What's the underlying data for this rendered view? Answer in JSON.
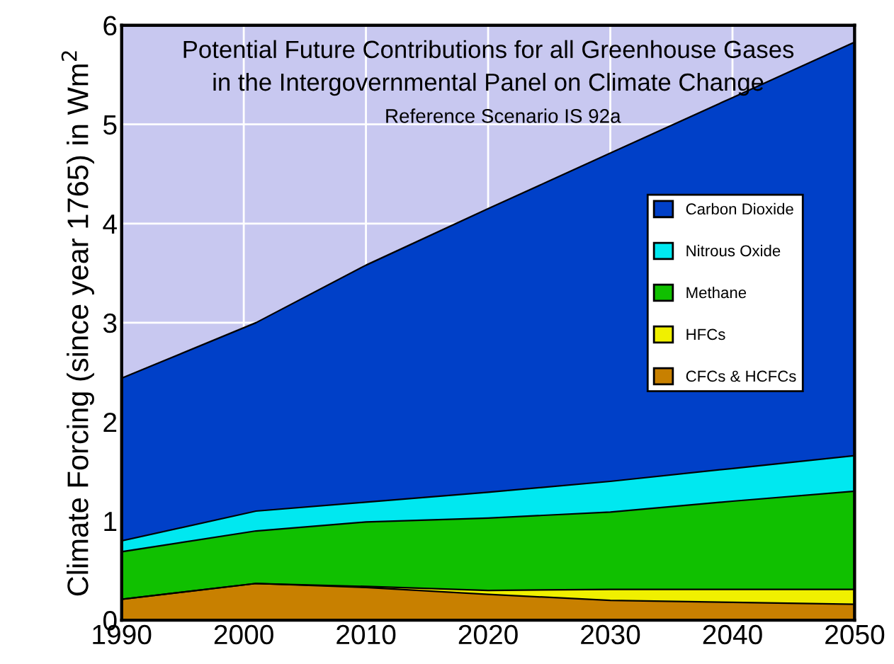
{
  "chart_data": {
    "type": "area",
    "stacked": true,
    "title": "Potential Future Contributions for all Greenhouse Gases",
    "subtitle": "in the Intergovernmental Panel on Climate Change",
    "annotations": [
      "Reference Scenario IS 92a"
    ],
    "ylabel": "Climate Forcing (since year 1765) in Wm$^{2}$",
    "x": [
      1990,
      2001,
      2010,
      2020,
      2030,
      2040,
      2050
    ],
    "series": [
      {
        "name": "CFCs & HCFCs",
        "color": "#c88000",
        "values": [
          0.21,
          0.37,
          0.33,
          0.26,
          0.2,
          0.18,
          0.16
        ]
      },
      {
        "name": "HFCs",
        "color": "#f0f000",
        "values": [
          0,
          0,
          0.01,
          0.04,
          0.11,
          0.13,
          0.15
        ]
      },
      {
        "name": "Methane",
        "color": "#10c000",
        "values": [
          0.48,
          0.53,
          0.65,
          0.73,
          0.78,
          0.89,
          0.99
        ]
      },
      {
        "name": "Nitrous Oxide",
        "color": "#00e8f0",
        "values": [
          0.11,
          0.2,
          0.2,
          0.26,
          0.31,
          0.33,
          0.36
        ]
      },
      {
        "name": "Carbon Dioxide",
        "color": "#0040c8",
        "values": [
          1.64,
          1.9,
          2.39,
          2.86,
          3.31,
          3.74,
          4.17
        ]
      }
    ],
    "xlim": [
      1990,
      2050
    ],
    "xticks": [
      1990,
      2000,
      2010,
      2020,
      2030,
      2040,
      2050
    ],
    "ylim": [
      0,
      6
    ],
    "yticks": [
      0,
      1,
      2,
      3,
      4,
      5,
      6
    ],
    "bands": [
      {
        "axis": "y",
        "from": 0,
        "to": 6,
        "color": "#c8c8f0"
      }
    ],
    "grid": true,
    "legend": "right"
  }
}
